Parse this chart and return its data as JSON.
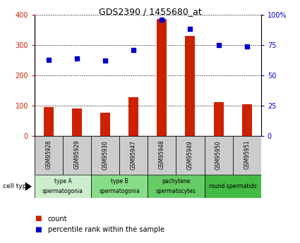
{
  "title": "GDS2390 / 1455680_at",
  "samples": [
    "GSM95928",
    "GSM95929",
    "GSM95930",
    "GSM95947",
    "GSM95948",
    "GSM95949",
    "GSM95950",
    "GSM95951"
  ],
  "counts": [
    95,
    92,
    78,
    128,
    385,
    330,
    112,
    105
  ],
  "percentile_ranks": [
    63,
    64,
    62,
    71,
    96,
    88,
    75,
    74
  ],
  "cell_type_groups": [
    {
      "label": "type A\nspermatogonia",
      "samples": [
        0,
        1
      ],
      "color": "#cceecc"
    },
    {
      "label": "type B\nspermatogonia",
      "samples": [
        2,
        3
      ],
      "color": "#88dd88"
    },
    {
      "label": "pachytene\nspermatocytes",
      "samples": [
        4,
        5
      ],
      "color": "#66cc66"
    },
    {
      "label": "round spermatids",
      "samples": [
        6,
        7
      ],
      "color": "#44bb44"
    }
  ],
  "bar_color": "#cc2200",
  "dot_color": "#0000cc",
  "left_ylim": [
    0,
    400
  ],
  "left_yticks": [
    0,
    100,
    200,
    300,
    400
  ],
  "right_ylim": [
    0,
    100
  ],
  "right_yticks": [
    0,
    25,
    50,
    75,
    100
  ],
  "right_yticklabels": [
    "0",
    "25",
    "50",
    "75",
    "100%"
  ],
  "left_tick_color": "#cc2200",
  "right_tick_color": "#0000cc",
  "grid_color": "#000000",
  "bg_color": "#ffffff",
  "sample_bg_color": "#cccccc",
  "legend_count_label": "count",
  "legend_pct_label": "percentile rank within the sample"
}
